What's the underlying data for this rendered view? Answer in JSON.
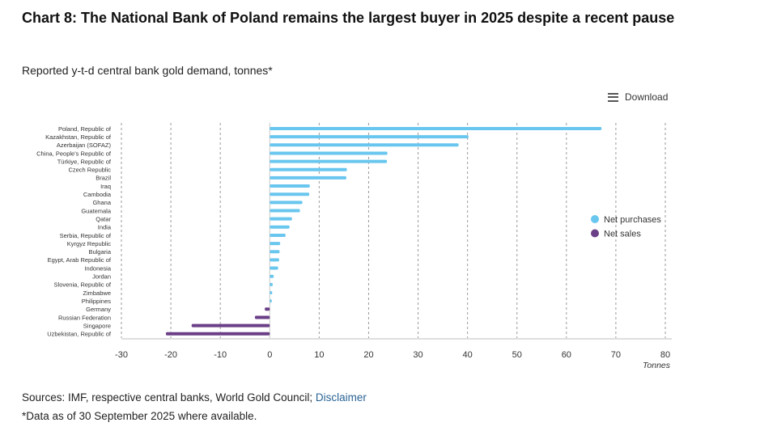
{
  "header": {
    "title": "Chart 8: The National Bank of Poland remains the largest buyer in 2025 despite a recent pause",
    "subtitle": "Reported y-t-d central bank gold demand, tonnes*"
  },
  "toolbar": {
    "download_label": "Download",
    "download_icon": "menu-icon"
  },
  "footer": {
    "sources_text": "Sources: IMF, respective central banks, World Gold Council; ",
    "disclaimer_label": "Disclaimer",
    "note": "*Data as of 30 September 2025 where available."
  },
  "colors": {
    "net_purchases": "#69c6ee",
    "net_sales": "#6b3f87",
    "grid": "#9a9a9a"
  },
  "chart_data": {
    "type": "bar",
    "orientation": "horizontal",
    "xlabel": "Tonnes",
    "xlim": [
      -30,
      80
    ],
    "xticks": [
      -30,
      -20,
      -10,
      0,
      10,
      20,
      30,
      40,
      50,
      60,
      70,
      80
    ],
    "grid": "vertical dashed",
    "legend_position": "right",
    "legend": [
      {
        "name": "Net purchases",
        "color": "#69c6ee"
      },
      {
        "name": "Net sales",
        "color": "#6b3f87"
      }
    ],
    "categories": [
      "Poland, Republic of",
      "Kazakhstan, Republic of",
      "Azerbaijan (SOFAZ)",
      "China, People's Republic of",
      "Türkiye, Republic of",
      "Czech Republic",
      "Brazil",
      "Iraq",
      "Cambodia",
      "Ghana",
      "Guatemala",
      "Qatar",
      "India",
      "Serbia, Republic of",
      "Kyrgyz Republic",
      "Bulgaria",
      "Egypt, Arab Republic of",
      "Indonesia",
      "Jordan",
      "Slovenia, Republic of",
      "Zimbabwe",
      "Philippines",
      "Germany",
      "Russian Federation",
      "Singapore",
      "Uzbekistan, Republic of"
    ],
    "values": [
      67.1,
      40.2,
      38.2,
      23.8,
      23.7,
      15.6,
      15.5,
      8.1,
      8.0,
      6.6,
      6.1,
      4.5,
      4.0,
      3.2,
      2.1,
      2.0,
      1.9,
      1.7,
      0.8,
      0.6,
      0.5,
      0.4,
      -1.0,
      -3.0,
      -15.8,
      -21.0
    ]
  }
}
